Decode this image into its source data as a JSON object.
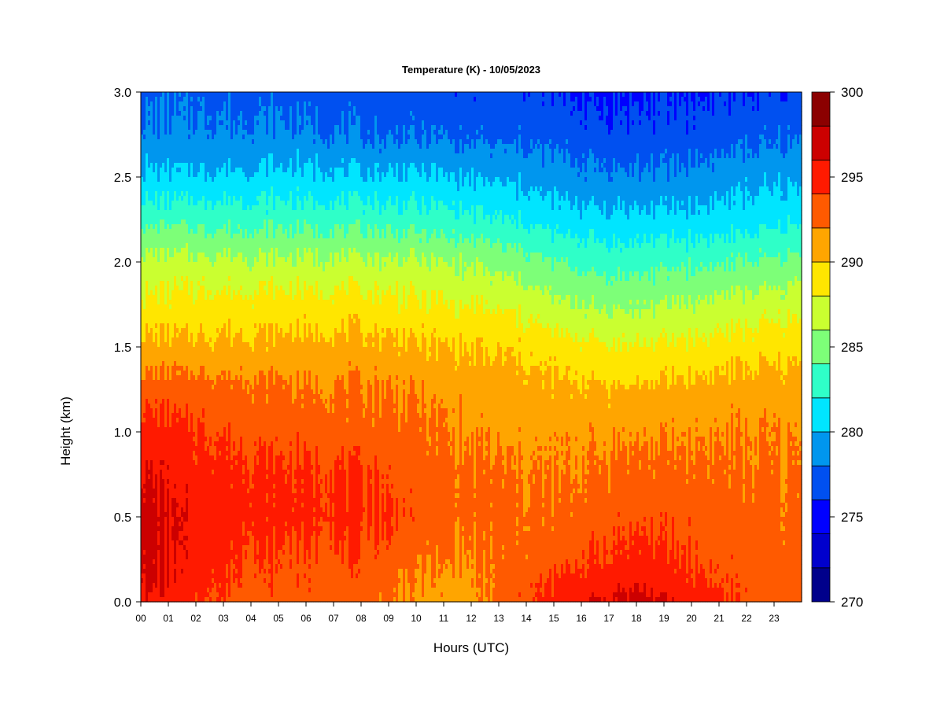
{
  "chart_data": {
    "type": "heatmap",
    "title": "Temperature (K) - 10/05/2023",
    "xlabel": "Hours (UTC)",
    "ylabel": "Height (km)",
    "x_ticks": [
      "00",
      "01",
      "02",
      "03",
      "04",
      "05",
      "06",
      "07",
      "08",
      "09",
      "10",
      "11",
      "12",
      "13",
      "14",
      "15",
      "16",
      "17",
      "18",
      "19",
      "20",
      "21",
      "22",
      "23"
    ],
    "x_range": [
      0,
      23.9
    ],
    "y_ticks": [
      "0.0",
      "0.5",
      "1.0",
      "1.5",
      "2.0",
      "2.5",
      "3.0"
    ],
    "y_range": [
      0,
      3.0
    ],
    "colorbar": {
      "min": 270,
      "max": 300,
      "step": 2,
      "tick_labels": [
        "270",
        "275",
        "280",
        "285",
        "290",
        "295",
        "300"
      ],
      "levels": [
        {
          "from": 270,
          "to": 272,
          "color": "#00008b"
        },
        {
          "from": 272,
          "to": 274,
          "color": "#0000cd"
        },
        {
          "from": 274,
          "to": 276,
          "color": "#0000ff"
        },
        {
          "from": 276,
          "to": 278,
          "color": "#0050f0"
        },
        {
          "from": 278,
          "to": 280,
          "color": "#0096ee"
        },
        {
          "from": 280,
          "to": 282,
          "color": "#00e5ff"
        },
        {
          "from": 282,
          "to": 284,
          "color": "#2fffc8"
        },
        {
          "from": 284,
          "to": 286,
          "color": "#7dff78"
        },
        {
          "from": 286,
          "to": 288,
          "color": "#caff30"
        },
        {
          "from": 288,
          "to": 290,
          "color": "#ffe600"
        },
        {
          "from": 290,
          "to": 292,
          "color": "#ffa500"
        },
        {
          "from": 292,
          "to": 294,
          "color": "#ff5a00"
        },
        {
          "from": 294,
          "to": 296,
          "color": "#ff1a00"
        },
        {
          "from": 296,
          "to": 298,
          "color": "#cc0000"
        },
        {
          "from": 298,
          "to": 300,
          "color": "#8b0000"
        }
      ]
    },
    "profile_heights_km": [
      0.0,
      0.1,
      0.25,
      0.5,
      0.75,
      1.0,
      1.25,
      1.5,
      1.75,
      2.0,
      2.25,
      2.5,
      2.75,
      3.0
    ],
    "profiles": [
      {
        "hour": 0,
        "temps": [
          295.5,
          296.5,
          296.8,
          297.0,
          296.2,
          295.0,
          293.0,
          290.5,
          288.5,
          286.6,
          283.4,
          280.3,
          278.3,
          277.5
        ]
      },
      {
        "hour": 2,
        "temps": [
          294.4,
          294.8,
          295.1,
          295.4,
          294.8,
          294.3,
          292.8,
          290.6,
          288.7,
          286.6,
          283.4,
          280.3,
          278.3,
          277.5
        ]
      },
      {
        "hour": 4,
        "temps": [
          293.2,
          293.6,
          294.0,
          294.7,
          294.5,
          293.4,
          292.6,
          290.6,
          288.7,
          286.4,
          283.3,
          280.5,
          278.4,
          277.4
        ]
      },
      {
        "hour": 6,
        "temps": [
          293.2,
          293.3,
          293.6,
          294.6,
          294.3,
          293.3,
          292.2,
          290.6,
          288.8,
          286.4,
          283.2,
          280.5,
          278.3,
          277.1
        ]
      },
      {
        "hour": 8,
        "temps": [
          292.8,
          293.0,
          293.6,
          294.4,
          294.2,
          292.8,
          292.1,
          290.7,
          288.8,
          286.4,
          283.2,
          280.3,
          277.8,
          276.9
        ]
      },
      {
        "hour": 9,
        "temps": [
          292.3,
          292.8,
          293.4,
          294.3,
          293.7,
          292.8,
          292.2,
          290.6,
          288.6,
          286.3,
          283.0,
          280.3,
          277.7,
          276.8
        ]
      },
      {
        "hour": 10,
        "temps": [
          291.3,
          291.6,
          292.3,
          293.2,
          293.0,
          292.6,
          291.7,
          290.3,
          288.3,
          286.2,
          282.9,
          280.3,
          277.8,
          276.8
        ]
      },
      {
        "hour": 12,
        "temps": [
          291.2,
          291.4,
          291.8,
          292.6,
          292.4,
          291.6,
          291.1,
          289.9,
          287.9,
          285.7,
          282.4,
          279.8,
          277.5,
          276.6
        ]
      },
      {
        "hour": 14,
        "temps": [
          293.5,
          293.5,
          292.7,
          292.4,
          292.1,
          291.4,
          290.8,
          289.5,
          287.3,
          284.8,
          281.6,
          279.3,
          277.4,
          276.5
        ]
      },
      {
        "hour": 15,
        "temps": [
          294.7,
          294.3,
          293.2,
          292.3,
          291.9,
          291.4,
          290.4,
          288.9,
          286.3,
          283.9,
          281.0,
          278.8,
          277.2,
          275.8
        ]
      },
      {
        "hour": 17,
        "temps": [
          296.4,
          295.3,
          294.3,
          293.3,
          292.5,
          291.7,
          290.3,
          288.3,
          285.7,
          283.1,
          280.6,
          278.4,
          276.7,
          275.6
        ]
      },
      {
        "hour": 18,
        "temps": [
          296.8,
          295.7,
          294.7,
          293.6,
          292.7,
          291.7,
          290.3,
          288.2,
          285.7,
          283.2,
          280.6,
          278.3,
          276.6,
          275.7
        ]
      },
      {
        "hour": 20,
        "temps": [
          295.4,
          294.6,
          293.9,
          293.3,
          292.6,
          291.8,
          290.6,
          288.6,
          286.2,
          283.6,
          280.6,
          278.6,
          276.8,
          275.9
        ]
      },
      {
        "hour": 22,
        "temps": [
          293.4,
          293.3,
          293.1,
          292.7,
          292.3,
          291.9,
          290.9,
          289.0,
          286.8,
          284.0,
          281.0,
          279.3,
          277.3,
          276.0
        ]
      },
      {
        "hour": 23.9,
        "temps": [
          292.9,
          292.9,
          292.7,
          292.5,
          292.2,
          291.8,
          290.9,
          289.3,
          287.2,
          284.5,
          281.7,
          279.5,
          277.6,
          276.3
        ]
      }
    ],
    "grid": false,
    "legend": "colorbar right"
  }
}
